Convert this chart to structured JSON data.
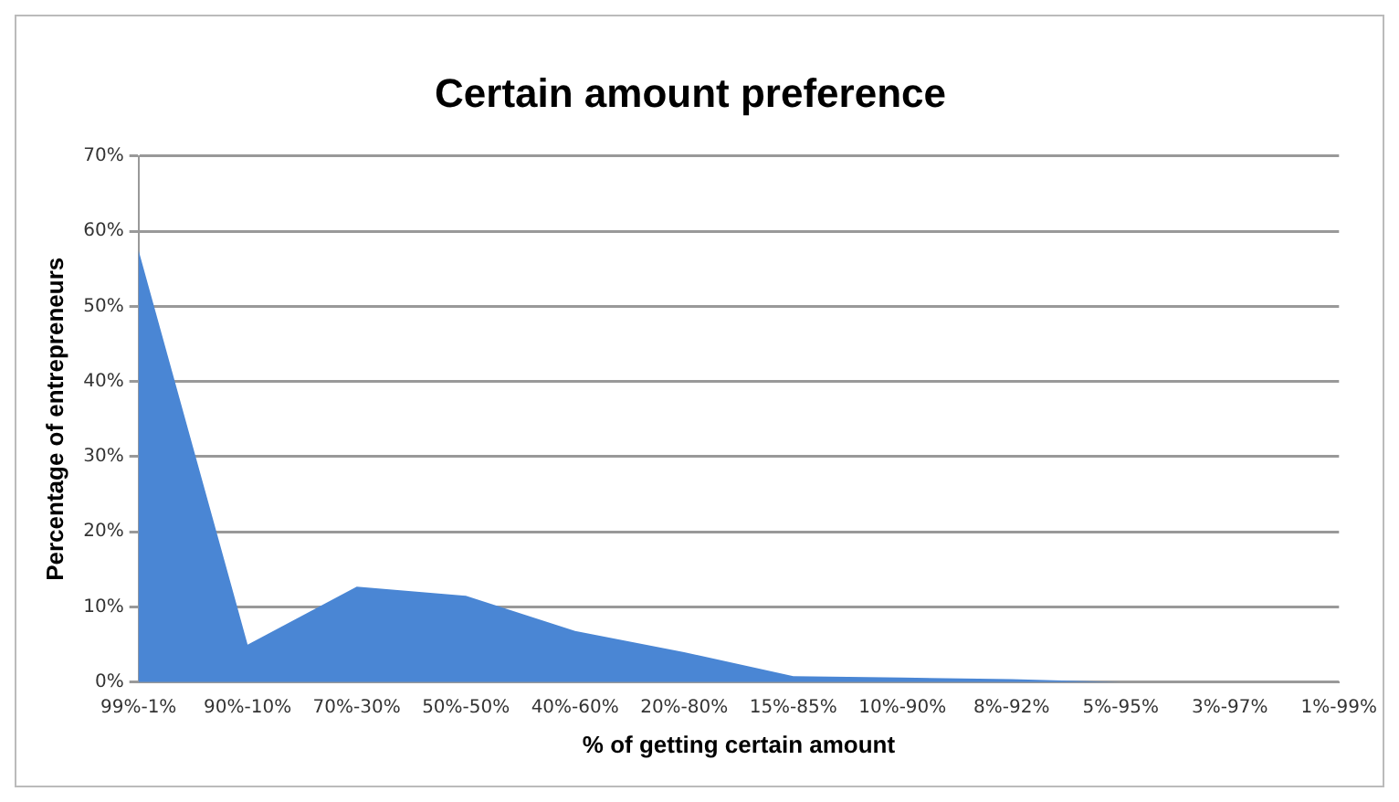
{
  "chart_data": {
    "type": "area",
    "title": "Certain amount preference",
    "xlabel": "% of getting certain amount",
    "ylabel": "Percentage of entrepreneurs",
    "categories": [
      "99%-1%",
      "90%-10%",
      "70%-30%",
      "50%-50%",
      "40%-60%",
      "20%-80%",
      "15%-85%",
      "10%-90%",
      "8%-92%",
      "5%-95%",
      "3%-97%",
      "1%-99%"
    ],
    "series": [
      {
        "color": "#4a86d4",
        "values": [
          57.5,
          5,
          12.7,
          11.5,
          6.8,
          4,
          0.8,
          0.6,
          0.4,
          0,
          0,
          0
        ]
      }
    ],
    "ylim": [
      0,
      70
    ],
    "yticks": [
      {
        "value": 0,
        "label": "0%"
      },
      {
        "value": 10,
        "label": "10%"
      },
      {
        "value": 20,
        "label": "20%"
      },
      {
        "value": 30,
        "label": "30%"
      },
      {
        "value": 40,
        "label": "40%"
      },
      {
        "value": 50,
        "label": "50%"
      },
      {
        "value": 60,
        "label": "60%"
      },
      {
        "value": 70,
        "label": "70%"
      }
    ],
    "grid": "y",
    "legend": false
  }
}
